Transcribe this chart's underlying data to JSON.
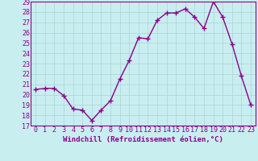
{
  "x": [
    0,
    1,
    2,
    3,
    4,
    5,
    6,
    7,
    8,
    9,
    10,
    11,
    12,
    13,
    14,
    15,
    16,
    17,
    18,
    19,
    20,
    21,
    22,
    23
  ],
  "y": [
    20.5,
    20.6,
    20.6,
    19.9,
    18.6,
    18.5,
    17.5,
    18.5,
    19.4,
    21.5,
    23.3,
    25.5,
    25.4,
    27.2,
    27.9,
    27.9,
    28.3,
    27.5,
    26.4,
    29.0,
    27.5,
    24.9,
    21.8,
    19.0
  ],
  "line_color": "#8B008B",
  "marker_color": "#8B008B",
  "bg_color": "#c8eef0",
  "grid_color": "#aad4d8",
  "axis_color": "#8B008B",
  "tick_color": "#8B008B",
  "xlabel": "Windchill (Refroidissement éolien,°C)",
  "ylim": [
    17,
    29
  ],
  "xlim": [
    -0.5,
    23.5
  ],
  "yticks": [
    17,
    18,
    19,
    20,
    21,
    22,
    23,
    24,
    25,
    26,
    27,
    28,
    29
  ],
  "xticks": [
    0,
    1,
    2,
    3,
    4,
    5,
    6,
    7,
    8,
    9,
    10,
    11,
    12,
    13,
    14,
    15,
    16,
    17,
    18,
    19,
    20,
    21,
    22,
    23
  ],
  "xlabel_fontsize": 6.5,
  "tick_fontsize": 6.0,
  "marker_size": 4,
  "line_width": 1.0
}
